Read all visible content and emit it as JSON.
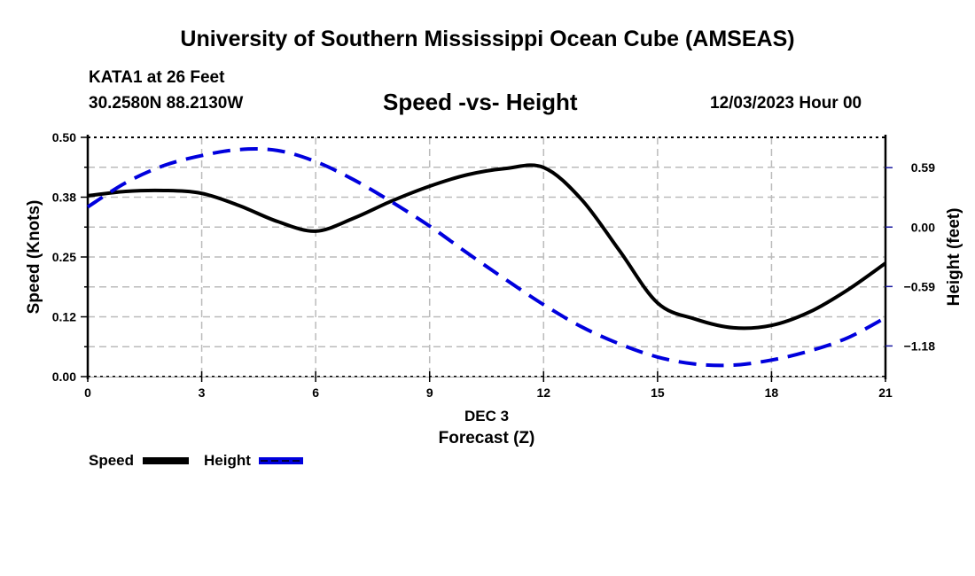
{
  "header": {
    "top_title": "University of Southern Mississippi Ocean Cube (AMSEAS)",
    "station": "KATA1 at 26 Feet",
    "coordinates": "30.2580N  88.2130W",
    "subtitle": "Speed -vs- Height",
    "datetime": "12/03/2023 Hour 00",
    "bottom_title": "University of Southern Mississippi Ocean Cube (AMSEAS)"
  },
  "chart_data": {
    "type": "line",
    "title": "Speed -vs- Height",
    "xlabel": "Forecast (Z)",
    "xlabel_date": "DEC 3",
    "ylabel": "Speed (Knots)",
    "y2label": "Height (feet)",
    "x": [
      0,
      1,
      2,
      3,
      4,
      5,
      6,
      7,
      8,
      9,
      10,
      11,
      12,
      13,
      14,
      15,
      16,
      17,
      18,
      19,
      20,
      21
    ],
    "xlim": [
      0,
      21
    ],
    "x_ticks": [
      0,
      3,
      6,
      9,
      12,
      15,
      18,
      21
    ],
    "x_tick_labels": [
      "0",
      "3",
      "6",
      "9",
      "12",
      "15",
      "18",
      "21"
    ],
    "ylim": [
      0,
      0.5
    ],
    "y_ticks": [
      0.0,
      0.125,
      0.25,
      0.375,
      0.5
    ],
    "y_tick_labels": [
      "0.00",
      "0.12",
      "0.25",
      "0.38",
      "0.50"
    ],
    "y2_zero_offset_knots": 0.3125,
    "y2_feet_per_knot": 4.75,
    "y2_ticks": [
      0.59,
      0.0,
      -0.59,
      -1.18
    ],
    "y2_tick_labels": [
      "0.59",
      "0.00",
      "−0.59",
      "−1.18"
    ],
    "grid": true,
    "legend_position": "bottom-left",
    "series": [
      {
        "name": "Speed",
        "axis": "left",
        "color": "#000000",
        "style": "solid",
        "values": [
          0.378,
          0.387,
          0.389,
          0.383,
          0.357,
          0.324,
          0.304,
          0.331,
          0.367,
          0.398,
          0.422,
          0.435,
          0.437,
          0.37,
          0.263,
          0.154,
          0.12,
          0.102,
          0.107,
          0.135,
          0.181,
          0.237
        ]
      },
      {
        "name": "Height",
        "axis": "right",
        "color": "#0000dd",
        "style": "dashed",
        "values": [
          0.2,
          0.44,
          0.61,
          0.71,
          0.77,
          0.76,
          0.65,
          0.47,
          0.25,
          0.01,
          -0.26,
          -0.52,
          -0.77,
          -0.99,
          -1.16,
          -1.29,
          -1.36,
          -1.37,
          -1.32,
          -1.23,
          -1.1,
          -0.9
        ]
      }
    ]
  }
}
